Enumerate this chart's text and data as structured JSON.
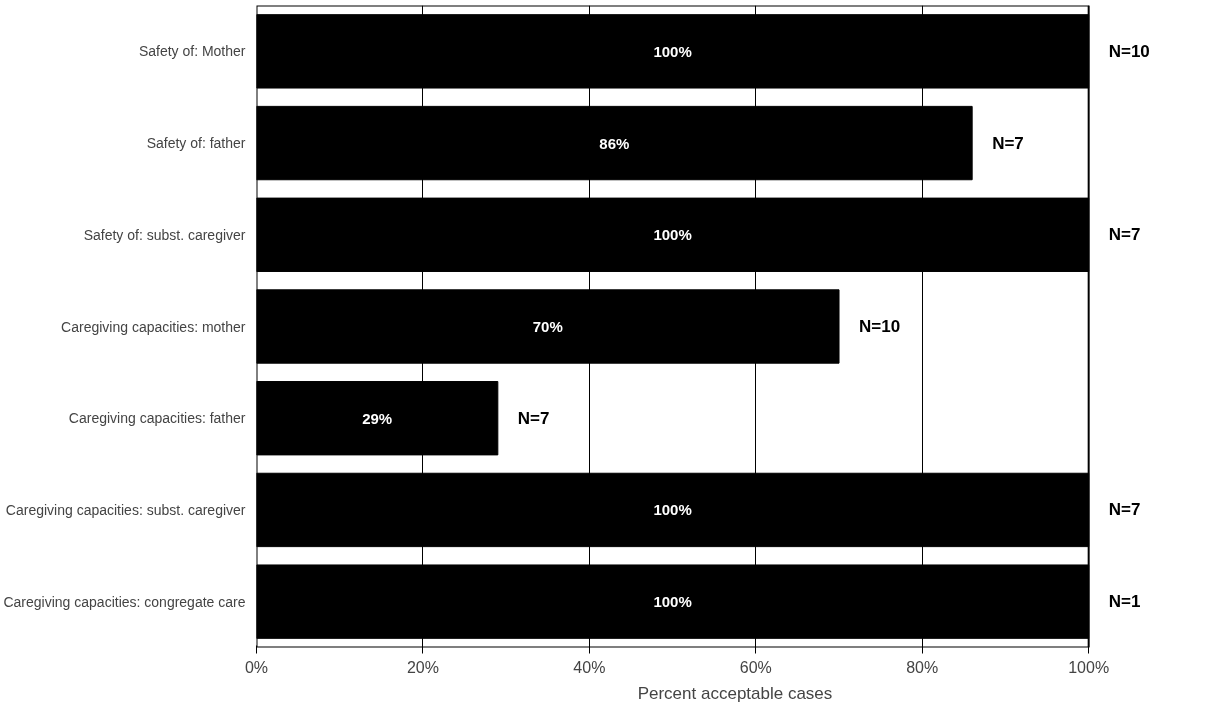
{
  "chart_data": {
    "type": "bar",
    "orientation": "horizontal",
    "xlabel": "Percent acceptable cases",
    "categories": [
      "Safety of: Mother",
      "Safety of: father",
      "Safety of: subst. caregiver",
      "Caregiving capacities: mother",
      "Caregiving capacities: father",
      "Caregiving capacities: subst. caregiver",
      "Caregiving capacities: congregate care"
    ],
    "values": [
      100,
      86,
      100,
      70,
      29,
      100,
      100
    ],
    "value_labels": [
      "100%",
      "86%",
      "100%",
      "70%",
      "29%",
      "100%",
      "100%"
    ],
    "color": "#000000",
    "annotations": [
      "N=10",
      "N=7",
      "N=7",
      "N=10",
      "N=7",
      "N=7",
      "N=1"
    ],
    "xlim": [
      0,
      100
    ],
    "xticks": [
      {
        "value": 0,
        "label": "0%"
      },
      {
        "value": 20,
        "label": "20%"
      },
      {
        "value": 40,
        "label": "40%"
      },
      {
        "value": 60,
        "label": "60%"
      },
      {
        "value": 80,
        "label": "80%"
      },
      {
        "value": 100,
        "label": "100%"
      }
    ],
    "grid": "x"
  }
}
